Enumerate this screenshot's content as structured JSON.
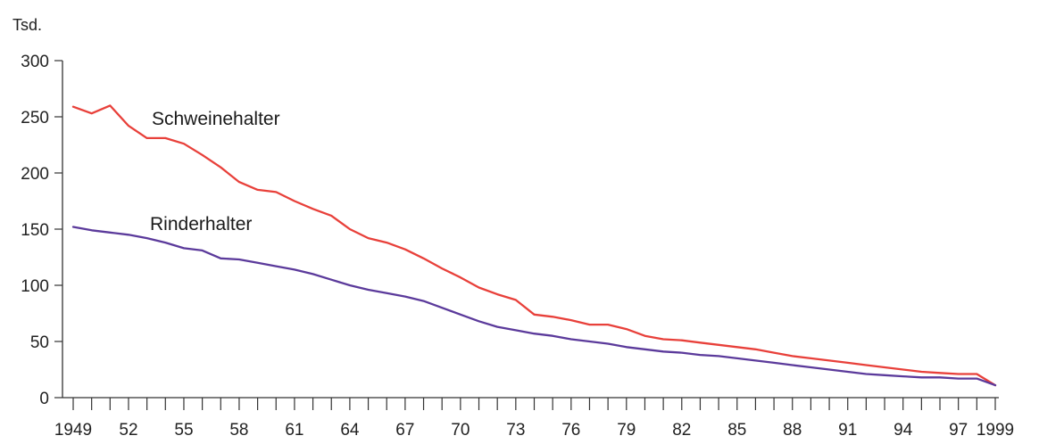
{
  "chart_data": {
    "type": "line",
    "unit_label": "Tsd.",
    "x": [
      1949,
      1950,
      1951,
      1952,
      1953,
      1954,
      1955,
      1956,
      1957,
      1958,
      1959,
      1960,
      1961,
      1962,
      1963,
      1964,
      1965,
      1966,
      1967,
      1968,
      1969,
      1970,
      1971,
      1972,
      1973,
      1974,
      1975,
      1976,
      1977,
      1978,
      1979,
      1980,
      1981,
      1982,
      1983,
      1984,
      1985,
      1986,
      1987,
      1988,
      1989,
      1990,
      1991,
      1992,
      1993,
      1994,
      1995,
      1996,
      1997,
      1998,
      1999
    ],
    "xlim": [
      1949,
      1999
    ],
    "x_tick_labels": [
      {
        "value": 1949,
        "label": "1949"
      },
      {
        "value": 1952,
        "label": "52"
      },
      {
        "value": 1955,
        "label": "55"
      },
      {
        "value": 1958,
        "label": "58"
      },
      {
        "value": 1961,
        "label": "61"
      },
      {
        "value": 1964,
        "label": "64"
      },
      {
        "value": 1967,
        "label": "67"
      },
      {
        "value": 1970,
        "label": "70"
      },
      {
        "value": 1973,
        "label": "73"
      },
      {
        "value": 1976,
        "label": "76"
      },
      {
        "value": 1979,
        "label": "79"
      },
      {
        "value": 1982,
        "label": "82"
      },
      {
        "value": 1985,
        "label": "85"
      },
      {
        "value": 1988,
        "label": "88"
      },
      {
        "value": 1991,
        "label": "91"
      },
      {
        "value": 1994,
        "label": "94"
      },
      {
        "value": 1997,
        "label": "97"
      },
      {
        "value": 1999,
        "label": "1999"
      }
    ],
    "ylim": [
      0,
      300
    ],
    "y_ticks": [
      0,
      50,
      100,
      150,
      200,
      250,
      300
    ],
    "grid": false,
    "series": [
      {
        "name": "Schweinehalter",
        "color": "#e8403a",
        "values": [
          259,
          253,
          260,
          242,
          231,
          231,
          226,
          216,
          205,
          192,
          185,
          183,
          175,
          168,
          162,
          150,
          142,
          138,
          132,
          124,
          115,
          107,
          98,
          92,
          87,
          74,
          72,
          69,
          65,
          65,
          61,
          55,
          52,
          51,
          49,
          47,
          45,
          43,
          40,
          37,
          35,
          33,
          31,
          29,
          27,
          25,
          23,
          22,
          21,
          21,
          11
        ]
      },
      {
        "name": "Rinderhalter",
        "color": "#5b3a9b",
        "values": [
          152,
          149,
          147,
          145,
          142,
          138,
          133,
          131,
          124,
          123,
          120,
          117,
          114,
          110,
          105,
          100,
          96,
          93,
          90,
          86,
          80,
          74,
          68,
          63,
          60,
          57,
          55,
          52,
          50,
          48,
          45,
          43,
          41,
          40,
          38,
          37,
          35,
          33,
          31,
          29,
          27,
          25,
          23,
          21,
          20,
          19,
          18,
          18,
          17,
          17,
          11
        ]
      }
    ]
  }
}
